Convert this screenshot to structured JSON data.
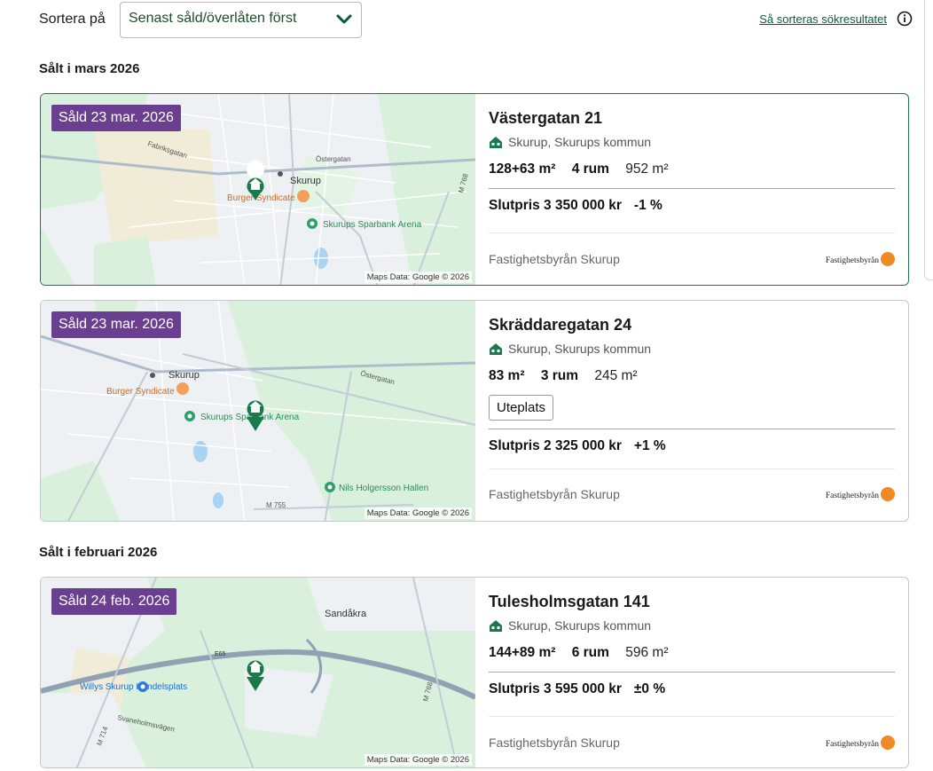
{
  "sort": {
    "label": "Sortera på",
    "selected": "Senast såld/överlåten först",
    "help_link": "Så sorteras sökresultatet"
  },
  "colors": {
    "sold_badge": "#6b3f8f",
    "brand_green": "#0a5c36",
    "logo_orange": "#f08a24"
  },
  "sections": [
    {
      "title": "Sålt i mars 2026"
    },
    {
      "title": "Sålt i februari 2026"
    }
  ],
  "listings": [
    {
      "badge": "Såld 23 mar. 2026",
      "address": "Västergatan 21",
      "location": "Skurup, Skurups kommun",
      "area": "128+63 m²",
      "rooms": "4 rum",
      "plot": "952 m²",
      "tags": [],
      "price": "Slutpris 3 350 000 kr",
      "change": "-1 %",
      "broker": "Fastighetsbyrån Skurup",
      "logo_text": "Fastighetsbyrån",
      "map_attribution": "Maps Data: Google © 2026",
      "map_labels": {
        "l1": "Skurup",
        "l2": "Burger Syndicate",
        "l3": "Skurups Sparbank Arena",
        "l4": "Östergatan",
        "l5": "Fabriksgatan",
        "l6": "M 768"
      }
    },
    {
      "badge": "Såld 23 mar. 2026",
      "address": "Skräddaregatan 24",
      "location": "Skurup, Skurups kommun",
      "area": "83 m²",
      "rooms": "3 rum",
      "plot": "245 m²",
      "tags": [
        "Uteplats"
      ],
      "price": "Slutpris 2 325 000 kr",
      "change": "+1 %",
      "broker": "Fastighetsbyrån Skurup",
      "logo_text": "Fastighetsbyrån",
      "map_attribution": "Maps Data: Google © 2026",
      "map_labels": {
        "l1": "Skurup",
        "l2": "Burger Syndicate",
        "l3": "Skurups Sparbank Arena",
        "l4": "Nils Holgersson Hallen",
        "l5": "Östergatan",
        "l6": "M 755"
      }
    },
    {
      "badge": "Såld 24 feb. 2026",
      "address": "Tulesholmsgatan 141",
      "location": "Skurup, Skurups kommun",
      "area": "144+89 m²",
      "rooms": "6 rum",
      "plot": "596 m²",
      "tags": [],
      "price": "Slutpris 3 595 000 kr",
      "change": "±0 %",
      "broker": "Fastighetsbyrån Skurup",
      "logo_text": "Fastighetsbyrån",
      "map_attribution": "Maps Data: Google © 2026",
      "map_labels": {
        "l1": "Sandåkra",
        "l2": "Willys Skurup Handelsplats",
        "l3": "E65",
        "l4": "Svaneholmsvägen",
        "l5": "M 714",
        "l6": "M 768"
      }
    }
  ]
}
